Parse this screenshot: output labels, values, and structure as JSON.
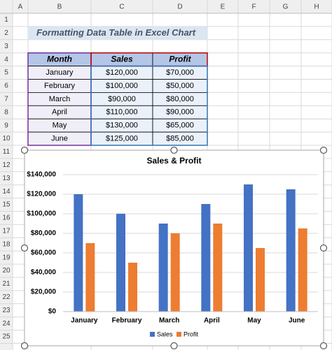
{
  "sheet": {
    "columns": [
      "A",
      "B",
      "C",
      "D",
      "E",
      "F",
      "G",
      "H"
    ],
    "rows": [
      1,
      2,
      3,
      4,
      5,
      6,
      7,
      8,
      9,
      10,
      11,
      12,
      13,
      14,
      15,
      16,
      17,
      18,
      19,
      20,
      21,
      22,
      23,
      24,
      25
    ],
    "title": "Formatting Data Table in Excel Chart",
    "table": {
      "header": [
        "Month",
        "Sales",
        "Profit"
      ],
      "rows": [
        [
          "January",
          "$120,000",
          "$70,000"
        ],
        [
          "February",
          "$100,000",
          "$50,000"
        ],
        [
          "March",
          "$90,000",
          "$80,000"
        ],
        [
          "April",
          "$110,000",
          "$90,000"
        ],
        [
          "May",
          "$130,000",
          "$65,000"
        ],
        [
          "June",
          "$125,000",
          "$85,000"
        ]
      ]
    }
  },
  "chart_data": {
    "type": "bar",
    "title": "Sales & Profit",
    "categories": [
      "January",
      "February",
      "March",
      "April",
      "May",
      "June"
    ],
    "series": [
      {
        "name": "Sales",
        "color": "#4472c4",
        "values": [
          120000,
          100000,
          90000,
          110000,
          130000,
          125000
        ]
      },
      {
        "name": "Profit",
        "color": "#ed7d31",
        "values": [
          70000,
          50000,
          80000,
          90000,
          65000,
          85000
        ]
      }
    ],
    "ylim": [
      0,
      140000
    ],
    "yticks": [
      {
        "value": 0,
        "label": "$0"
      },
      {
        "value": 20000,
        "label": "$20,000"
      },
      {
        "value": 40000,
        "label": "$40,000"
      },
      {
        "value": 60000,
        "label": "$60,000"
      },
      {
        "value": 80000,
        "label": "$80,000"
      },
      {
        "value": 100000,
        "label": "$100,000"
      },
      {
        "value": 120000,
        "label": "$120,000"
      },
      {
        "value": 140000,
        "label": "$140,000"
      }
    ],
    "grid": true,
    "legend": "bottom"
  }
}
